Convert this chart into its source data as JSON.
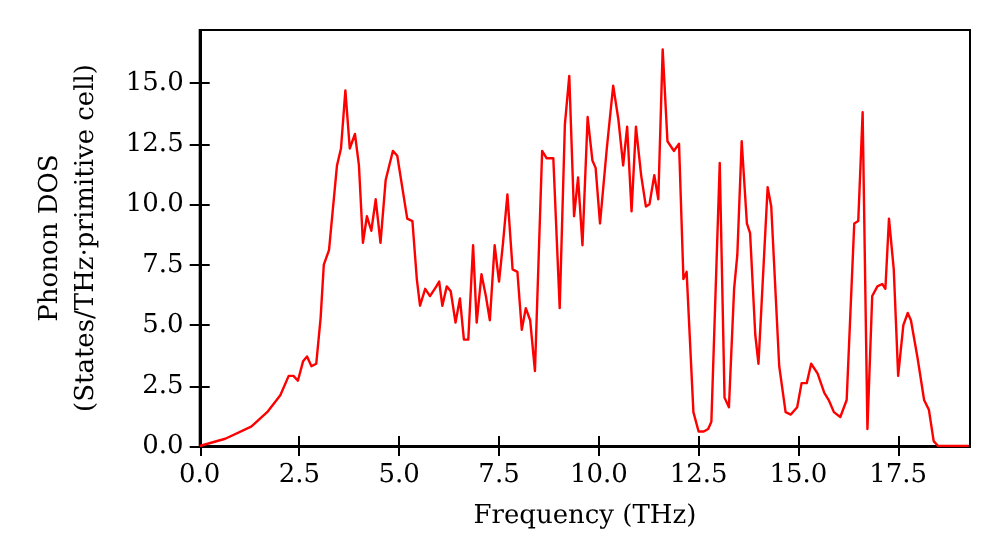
{
  "chart_data": {
    "type": "line",
    "xlabel": "Frequency (THz)",
    "ylabel": "Phonon DOS\n(States/THz·primitive cell)",
    "x": [
      0,
      0.64,
      1.29,
      1.69,
      2.02,
      2.23,
      2.35,
      2.46,
      2.59,
      2.69,
      2.8,
      2.92,
      3.03,
      3.11,
      3.24,
      3.44,
      3.54,
      3.65,
      3.76,
      3.89,
      3.99,
      4.09,
      4.19,
      4.3,
      4.41,
      4.53,
      4.66,
      4.84,
      4.95,
      5.2,
      5.33,
      5.44,
      5.52,
      5.65,
      5.77,
      5.93,
      6.0,
      6.08,
      6.19,
      6.29,
      6.41,
      6.52,
      6.62,
      6.73,
      6.85,
      6.94,
      7.06,
      7.17,
      7.27,
      7.39,
      7.5,
      7.6,
      7.71,
      7.84,
      7.96,
      8.07,
      8.17,
      8.28,
      8.4,
      8.58,
      8.69,
      8.86,
      9.02,
      9.15,
      9.26,
      9.38,
      9.48,
      9.59,
      9.72,
      9.84,
      9.92,
      10.03,
      10.2,
      10.36,
      10.49,
      10.61,
      10.71,
      10.82,
      10.93,
      11.06,
      11.18,
      11.27,
      11.39,
      11.49,
      11.6,
      11.72,
      11.88,
      12.01,
      12.12,
      12.2,
      12.37,
      12.5,
      12.63,
      12.74,
      12.82,
      13.03,
      13.15,
      13.26,
      13.39,
      13.47,
      13.58,
      13.71,
      13.79,
      13.92,
      14.0,
      14.23,
      14.32,
      14.52,
      14.68,
      14.81,
      14.97,
      15.08,
      15.21,
      15.32,
      15.48,
      15.65,
      15.76,
      15.89,
      16.05,
      16.21,
      16.4,
      16.5,
      16.61,
      16.73,
      16.85,
      16.98,
      17.1,
      17.18,
      17.27,
      17.39,
      17.5,
      17.63,
      17.74,
      17.82,
      17.98,
      18.15,
      18.27,
      18.39,
      18.5,
      19.27
    ],
    "series": [
      {
        "color": "#ff0000",
        "values": [
          0,
          0.3,
          0.8,
          1.4,
          2.1,
          2.9,
          2.9,
          2.7,
          3.5,
          3.7,
          3.3,
          3.4,
          5.3,
          7.5,
          8.1,
          11.6,
          12.3,
          14.7,
          12.3,
          12.9,
          11.6,
          8.4,
          9.5,
          8.9,
          10.2,
          8.4,
          11.0,
          12.2,
          12.0,
          9.4,
          9.3,
          6.9,
          5.8,
          6.5,
          6.2,
          6.6,
          6.8,
          5.8,
          6.6,
          6.4,
          5.1,
          6.1,
          4.4,
          4.4,
          8.3,
          5.1,
          7.1,
          6.2,
          5.2,
          8.3,
          6.8,
          8.4,
          10.4,
          7.3,
          7.2,
          4.8,
          5.7,
          5.2,
          3.1,
          12.2,
          11.9,
          11.9,
          5.7,
          13.3,
          15.3,
          9.5,
          11.1,
          8.3,
          13.6,
          11.8,
          11.5,
          9.2,
          12.3,
          14.9,
          13.5,
          11.6,
          13.2,
          9.7,
          13.2,
          11.2,
          9.9,
          10.0,
          11.2,
          10.2,
          16.4,
          12.6,
          12.2,
          12.5,
          6.9,
          7.2,
          1.4,
          0.6,
          0.6,
          0.7,
          1.0,
          11.7,
          2.0,
          1.6,
          6.5,
          7.9,
          12.6,
          9.2,
          8.8,
          4.6,
          3.4,
          10.7,
          9.9,
          3.3,
          1.4,
          1.3,
          1.6,
          2.6,
          2.6,
          3.4,
          3.0,
          2.2,
          1.9,
          1.4,
          1.2,
          1.9,
          9.2,
          9.3,
          13.8,
          0.7,
          6.2,
          6.6,
          6.7,
          6.5,
          9.4,
          7.3,
          2.9,
          5.0,
          5.5,
          5.2,
          3.7,
          1.9,
          1.5,
          0.2,
          0,
          0
        ]
      }
    ],
    "xlim": [
      0,
      19.3
    ],
    "ylim": [
      0,
      17.2
    ],
    "xticks": [
      {
        "value": 0,
        "label": "0.0"
      },
      {
        "value": 2.5,
        "label": "2.5"
      },
      {
        "value": 5,
        "label": "5.0"
      },
      {
        "value": 7.5,
        "label": "7.5"
      },
      {
        "value": 10,
        "label": "10.0"
      },
      {
        "value": 12.5,
        "label": "12.5"
      },
      {
        "value": 15,
        "label": "15.0"
      },
      {
        "value": 17.5,
        "label": "17.5"
      }
    ],
    "yticks": [
      {
        "value": 0,
        "label": "0.0"
      },
      {
        "value": 2.5,
        "label": "2.5"
      },
      {
        "value": 5,
        "label": "5.0"
      },
      {
        "value": 7.5,
        "label": "7.5"
      },
      {
        "value": 10,
        "label": "10.0"
      },
      {
        "value": 12.5,
        "label": "12.5"
      },
      {
        "value": 15,
        "label": "15.0"
      }
    ],
    "grid": false,
    "marker": "none",
    "line_style": "solid"
  }
}
